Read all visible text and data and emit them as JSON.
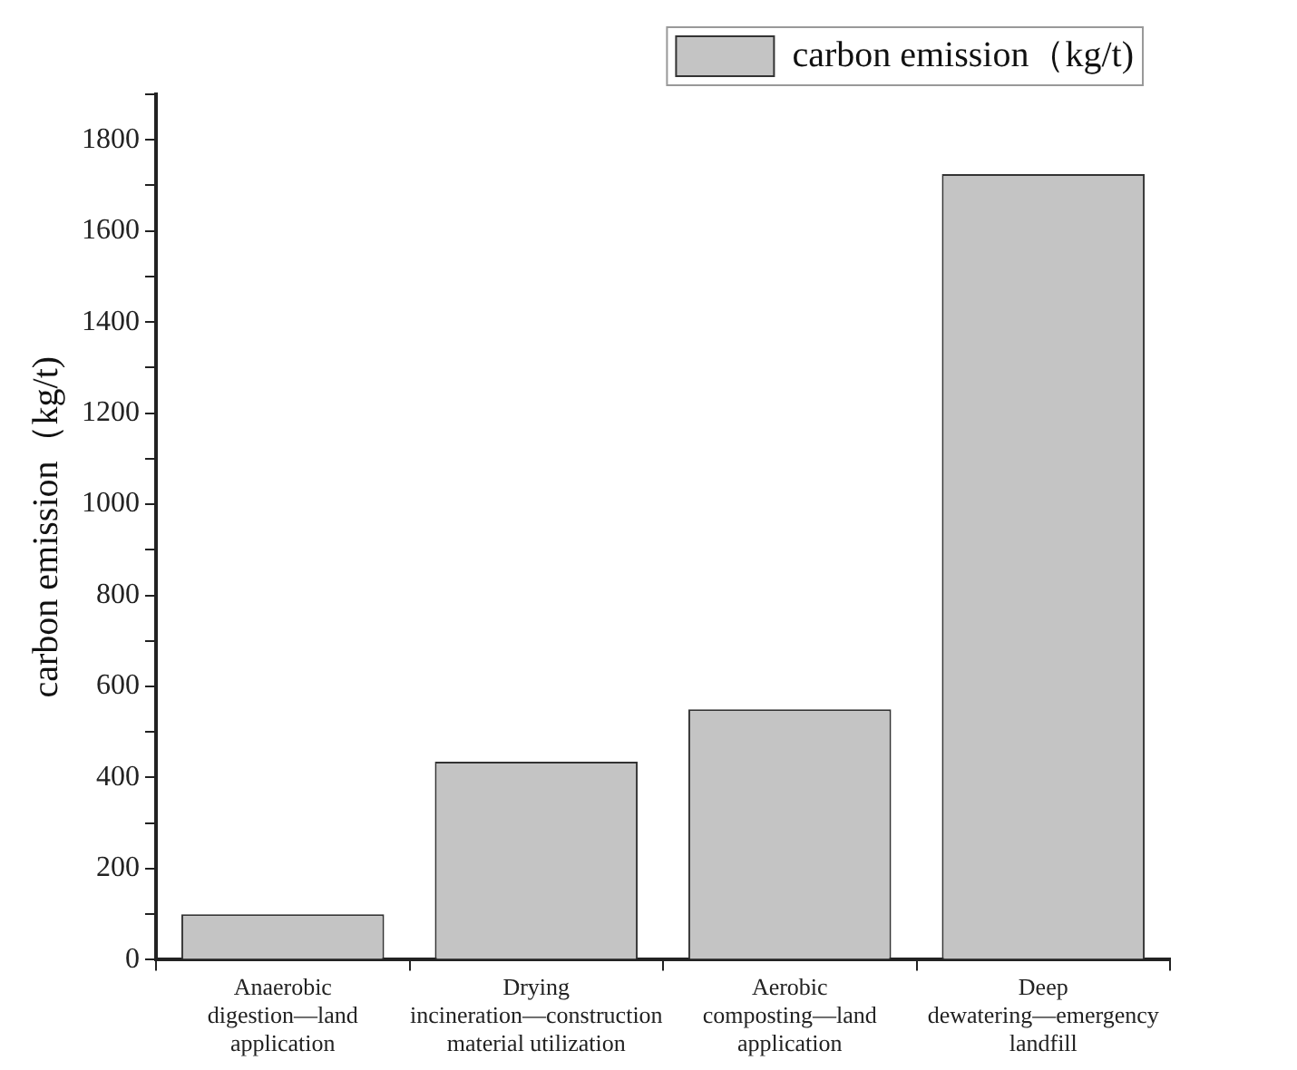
{
  "chart_data": {
    "type": "bar",
    "ylabel": "carbon emission（kg/t)",
    "categories": [
      "Anaerobic digestion—land application",
      "Drying incineration—construction material utilization",
      "Aerobic composting—land application",
      "Deep dewatering—emergency landfill"
    ],
    "series": [
      {
        "name": "carbon emission（kg/t)",
        "color": "#c4c4c4",
        "values": [
          100,
          435,
          550,
          1725
        ]
      }
    ],
    "ylim": [
      0,
      1900
    ],
    "yticks": [
      0,
      {
        "value": 100,
        "label": null
      },
      200,
      {
        "value": 300,
        "label": null
      },
      400,
      {
        "value": 500,
        "label": null
      },
      600,
      {
        "value": 700,
        "label": null
      },
      800,
      {
        "value": 900,
        "label": null
      },
      1000,
      {
        "value": 1100,
        "label": null
      },
      1200,
      {
        "value": 1300,
        "label": null
      },
      1400,
      {
        "value": 1500,
        "label": null
      },
      1600,
      {
        "value": 1700,
        "label": null
      },
      1800,
      {
        "value": 1900,
        "label": null
      }
    ],
    "grid": false,
    "legend": "top right"
  }
}
